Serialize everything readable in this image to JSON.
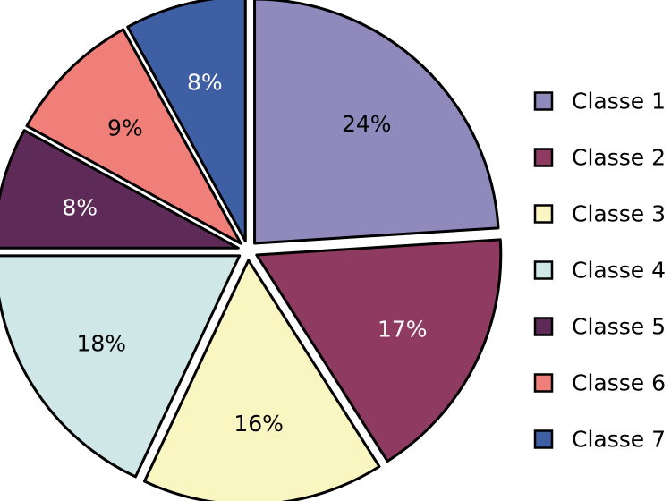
{
  "chart_data": {
    "type": "pie",
    "categories": [
      "Classe 1",
      "Classe 2",
      "Classe 3",
      "Classe 4",
      "Classe 5",
      "Classe 6",
      "Classe 7"
    ],
    "values": [
      24,
      17,
      16,
      18,
      8,
      9,
      8
    ],
    "labels": [
      "24%",
      "17%",
      "16%",
      "18%",
      "8%",
      "9%",
      "8%"
    ],
    "colors": [
      "#9089BC",
      "#8E3A61",
      "#FAF6C2",
      "#CFE7E6",
      "#5E2B58",
      "#F07F7A",
      "#3E5FA3"
    ],
    "label_colors": [
      "#000000",
      "#ffffff",
      "#000000",
      "#000000",
      "#ffffff",
      "#000000",
      "#ffffff"
    ],
    "legend_position": "right",
    "exploded": true,
    "start_angle": "top, clockwise"
  }
}
